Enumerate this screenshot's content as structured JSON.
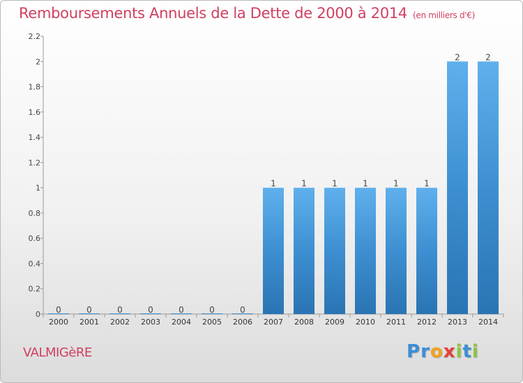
{
  "header": {
    "title": "Remboursements Annuels de la Dette de 2000 à 2014",
    "subtitle": "(en milliers d'€)"
  },
  "footer": {
    "commune": "VALMIGèRE",
    "logo_letters": [
      {
        "char": "P",
        "color": "#3a8fd6"
      },
      {
        "char": "r",
        "color": "#3a8fd6"
      },
      {
        "char": "o",
        "color": "#f2a21c"
      },
      {
        "char": "x",
        "color": "#e8403a"
      },
      {
        "char": "i",
        "color": "#8cc63e"
      },
      {
        "char": "t",
        "color": "#3a8fd6"
      },
      {
        "char": "i",
        "color": "#8cc63e"
      }
    ]
  },
  "chart_data": {
    "type": "bar",
    "categories": [
      "2000",
      "2001",
      "2002",
      "2003",
      "2004",
      "2005",
      "2006",
      "2007",
      "2008",
      "2009",
      "2010",
      "2011",
      "2012",
      "2013",
      "2014"
    ],
    "values": [
      0,
      0,
      0,
      0,
      0,
      0,
      0,
      1,
      1,
      1,
      1,
      1,
      1,
      2,
      2
    ],
    "value_labels": [
      "0",
      "0",
      "0",
      "0",
      "0",
      "0",
      "0",
      "1",
      "1",
      "1",
      "1",
      "1",
      "1",
      "2",
      "2"
    ],
    "yticks": [
      "0",
      "0.2",
      "0.4",
      "0.6",
      "0.8",
      "1",
      "1.2",
      "1.4",
      "1.6",
      "1.8",
      "2",
      "2.2"
    ],
    "ylim": [
      0,
      2.2
    ],
    "grid": false,
    "bar_color": "#3d8fd1",
    "bar_color_top": "#5fb0ec",
    "bar_color_bottom": "#2a74b3"
  }
}
